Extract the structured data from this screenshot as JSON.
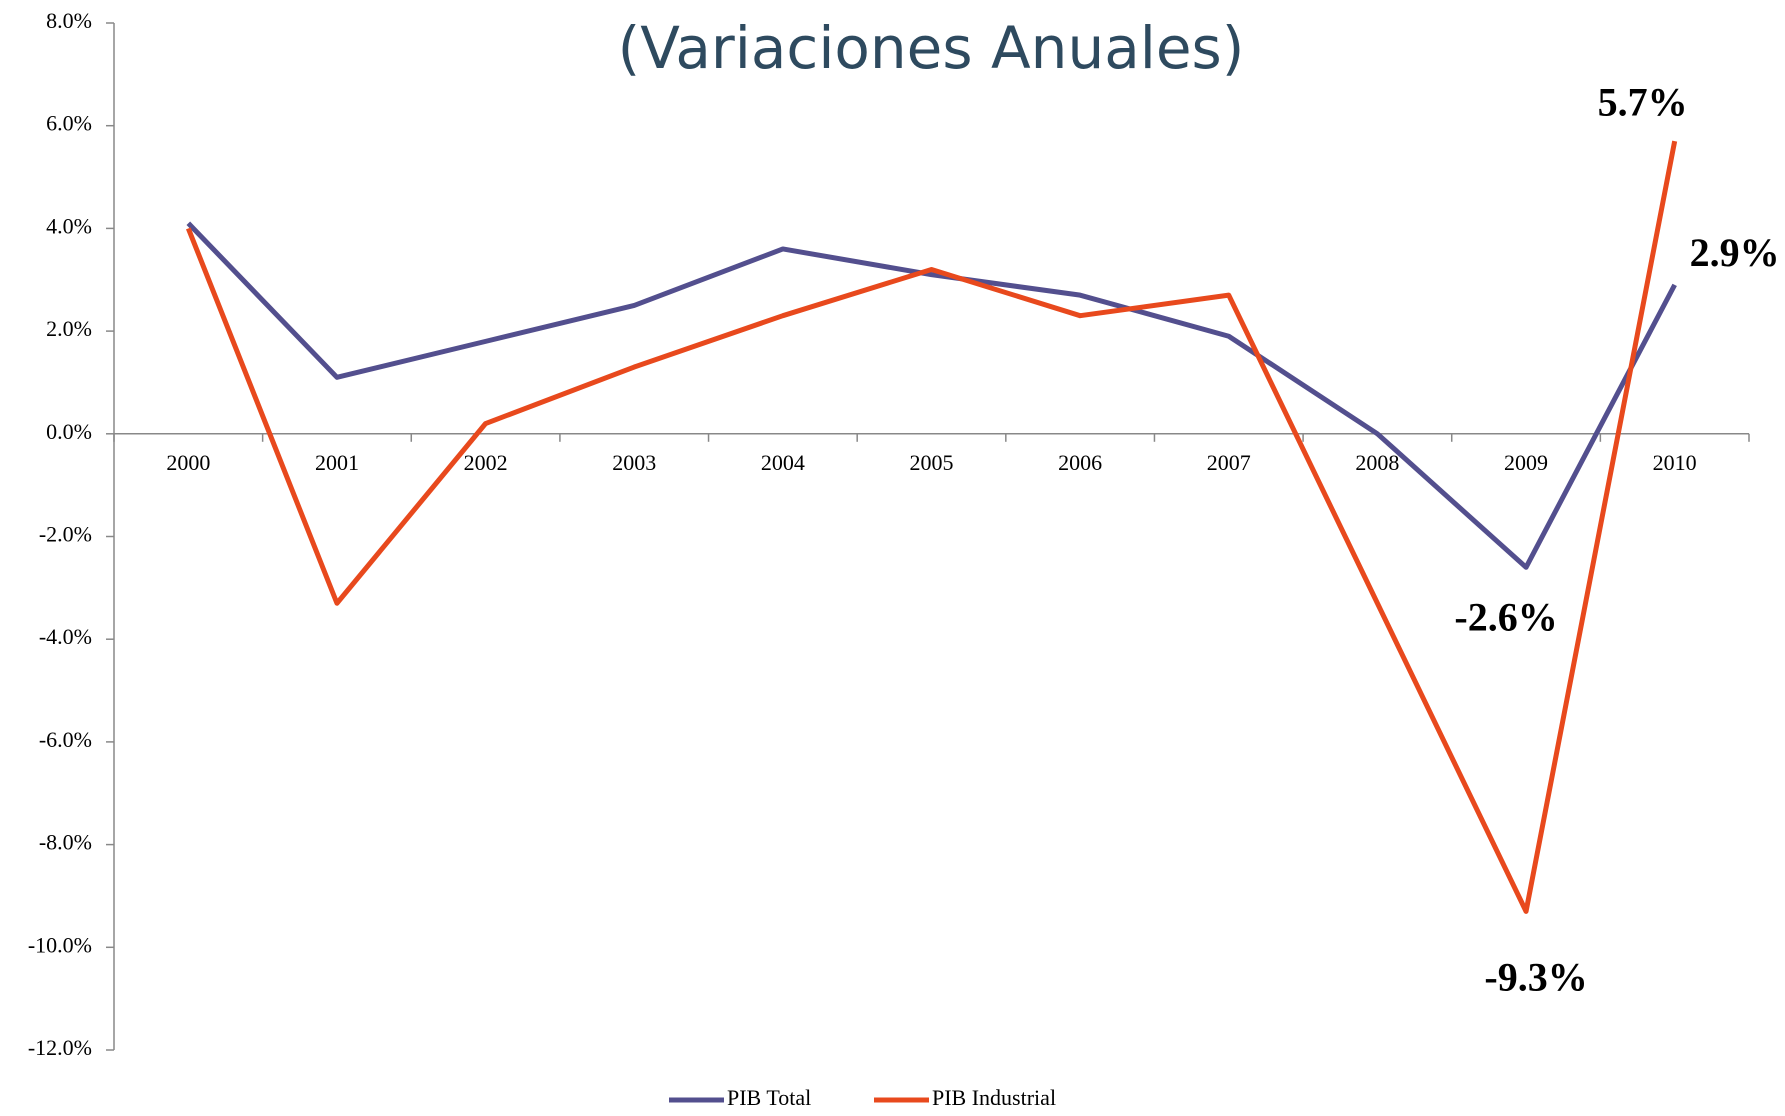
{
  "chart_data": {
    "type": "line",
    "title": "(Variaciones Anuales)",
    "categories": [
      "2000",
      "2001",
      "2002",
      "2003",
      "2004",
      "2005",
      "2006",
      "2007",
      "2008",
      "2009",
      "2010"
    ],
    "series": [
      {
        "name": "PIB Total",
        "color": "#534f8e",
        "values": [
          4.1,
          1.1,
          1.8,
          2.5,
          3.6,
          3.1,
          2.7,
          1.9,
          0.0,
          -2.6,
          2.9
        ],
        "value_labels": [
          null,
          null,
          null,
          null,
          null,
          null,
          null,
          null,
          null,
          "-2.6%",
          "2.9%"
        ]
      },
      {
        "name": "PIB Industrial",
        "color": "#e8491d",
        "values": [
          4.0,
          -3.3,
          0.2,
          1.3,
          2.3,
          3.2,
          2.3,
          2.7,
          -3.3,
          -9.3,
          5.7
        ],
        "value_labels": [
          null,
          null,
          null,
          null,
          null,
          null,
          null,
          null,
          null,
          "-9.3%",
          "5.7%"
        ]
      }
    ],
    "ylim": [
      -12,
      8
    ],
    "yticks": [
      {
        "value": -12,
        "label": "-12.0%"
      },
      {
        "value": -10,
        "label": "-10.0%"
      },
      {
        "value": -8,
        "label": "-8.0%"
      },
      {
        "value": -6,
        "label": "-6.0%"
      },
      {
        "value": -4,
        "label": "-4.0%"
      },
      {
        "value": -2,
        "label": "-2.0%"
      },
      {
        "value": 0,
        "label": "0.0%"
      },
      {
        "value": 2,
        "label": "2.0%"
      },
      {
        "value": 4,
        "label": "4.0%"
      },
      {
        "value": 6,
        "label": "6.0%"
      },
      {
        "value": 8,
        "label": "8.0%"
      }
    ],
    "legend": "bottom"
  }
}
